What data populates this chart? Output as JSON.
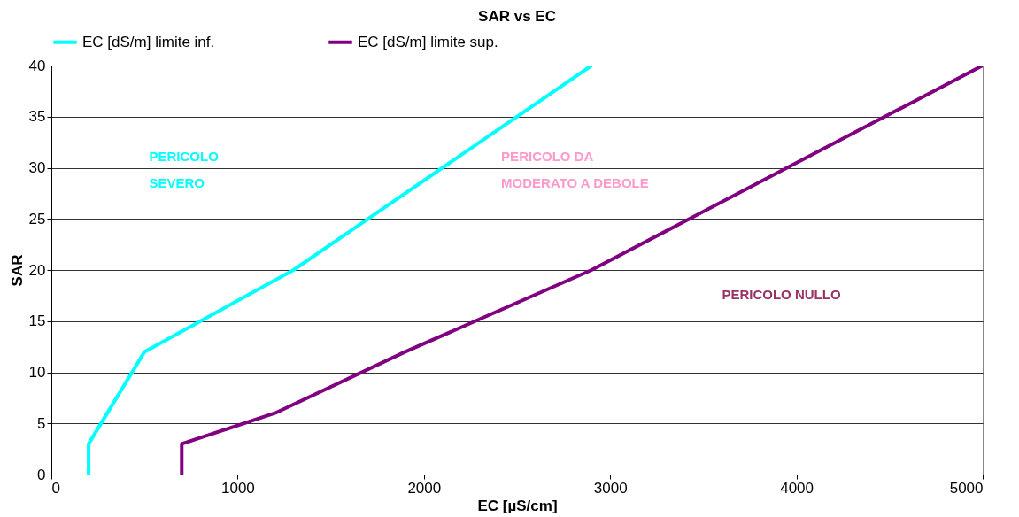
{
  "chart_data": {
    "type": "line",
    "title": "SAR vs EC",
    "xlabel": "EC [µS/cm]",
    "ylabel": "SAR",
    "series": [
      {
        "name": "EC [dS/m] limite inf.",
        "color": "#00ffff",
        "x": [
          200,
          200,
          500,
          1300,
          2900
        ],
        "values": [
          0,
          3,
          12,
          20,
          40
        ]
      },
      {
        "name": "EC [dS/m] limite sup.",
        "color": "#800080",
        "x": [
          700,
          700,
          1200,
          1900,
          2900,
          5000
        ],
        "values": [
          0,
          3,
          6,
          12,
          20,
          40
        ]
      }
    ],
    "xlim": [
      0,
      5000
    ],
    "xticks": [
      0,
      1000,
      2000,
      3000,
      4000,
      5000
    ],
    "ylim": [
      0,
      40
    ],
    "yticks": [
      0,
      5,
      10,
      15,
      20,
      25,
      30,
      35,
      40
    ],
    "grid": "y",
    "legend": "top",
    "marker": "none",
    "line_style": "solid",
    "annotations": [
      "PERICOLO\nSEVERO",
      "PERICOLO DA\nMODERATO A DEBOLE",
      "PERICOLO NULLO"
    ]
  }
}
